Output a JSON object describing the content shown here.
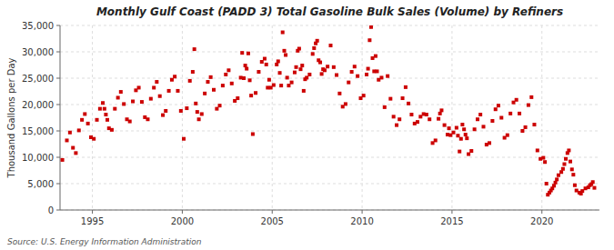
{
  "chart_data": {
    "type": "scatter",
    "title": "Monthly Gulf Coast (PADD 3) Total Gasoline Bulk Sales (Volume) by Refiners",
    "y_label": "Thousand Gallons per Day",
    "source": "Source: U.S. Energy Information Administration",
    "color": "#cc0000",
    "marker": "square",
    "grid": true,
    "xlim": [
      1993.2,
      2023.2
    ],
    "xticks": [
      1995,
      2000,
      2005,
      2010,
      2015,
      2020
    ],
    "ylim": [
      0,
      35000
    ],
    "yticks": [
      0,
      {
        "value": 5000,
        "label": "5,000"
      },
      {
        "value": 10000,
        "label": "10,000"
      },
      {
        "value": 15000,
        "label": "15,000"
      },
      {
        "value": 20000,
        "label": "20,000"
      },
      {
        "value": 25000,
        "label": "25,000"
      },
      {
        "value": 30000,
        "label": "30,000"
      },
      {
        "value": 35000,
        "label": "35,000"
      }
    ],
    "x": [
      1993.33,
      1993.58,
      1993.75,
      1993.92,
      1994.08,
      1994.25,
      1994.42,
      1994.58,
      1994.75,
      1994.92,
      1995.08,
      1995.25,
      1995.42,
      1995.58,
      1995.67,
      1995.75,
      1995.83,
      1995.92,
      1996.08,
      1996.25,
      1996.42,
      1996.58,
      1996.75,
      1996.92,
      1997.08,
      1997.25,
      1997.42,
      1997.58,
      1997.75,
      1997.92,
      1998.08,
      1998.25,
      1998.42,
      1998.58,
      1998.75,
      1998.92,
      1999.08,
      1999.25,
      1999.42,
      1999.58,
      1999.75,
      1999.92,
      2000.08,
      2000.25,
      2000.42,
      2000.58,
      2000.67,
      2000.75,
      2000.83,
      2000.92,
      2001.08,
      2001.25,
      2001.42,
      2001.58,
      2001.75,
      2001.92,
      2002.08,
      2002.25,
      2002.42,
      2002.58,
      2002.75,
      2002.92,
      2003.08,
      2003.25,
      2003.33,
      2003.42,
      2003.5,
      2003.58,
      2003.67,
      2003.75,
      2003.83,
      2003.92,
      2004.08,
      2004.25,
      2004.42,
      2004.58,
      2004.67,
      2004.75,
      2004.83,
      2004.92,
      2005.08,
      2005.25,
      2005.33,
      2005.42,
      2005.5,
      2005.58,
      2005.67,
      2005.75,
      2005.83,
      2005.92,
      2006.08,
      2006.25,
      2006.33,
      2006.42,
      2006.5,
      2006.58,
      2006.67,
      2006.75,
      2006.83,
      2006.92,
      2007.08,
      2007.25,
      2007.33,
      2007.42,
      2007.5,
      2007.58,
      2007.67,
      2007.75,
      2007.83,
      2007.92,
      2008.08,
      2008.25,
      2008.42,
      2008.58,
      2008.75,
      2008.92,
      2009.08,
      2009.25,
      2009.42,
      2009.58,
      2009.75,
      2009.92,
      2010.08,
      2010.25,
      2010.33,
      2010.42,
      2010.5,
      2010.58,
      2010.67,
      2010.75,
      2010.83,
      2010.92,
      2011.08,
      2011.25,
      2011.42,
      2011.58,
      2011.75,
      2011.92,
      2012.08,
      2012.25,
      2012.42,
      2012.58,
      2012.75,
      2012.92,
      2013.08,
      2013.25,
      2013.42,
      2013.58,
      2013.75,
      2013.92,
      2014.08,
      2014.25,
      2014.33,
      2014.42,
      2014.58,
      2014.75,
      2014.83,
      2014.92,
      2015.08,
      2015.25,
      2015.33,
      2015.42,
      2015.5,
      2015.58,
      2015.67,
      2015.75,
      2015.83,
      2015.92,
      2016.08,
      2016.25,
      2016.42,
      2016.58,
      2016.75,
      2016.92,
      2017.08,
      2017.25,
      2017.42,
      2017.58,
      2017.75,
      2017.92,
      2018.08,
      2018.25,
      2018.42,
      2018.58,
      2018.75,
      2018.92,
      2019.08,
      2019.25,
      2019.42,
      2019.58,
      2019.75,
      2019.92,
      2020.08,
      2020.17,
      2020.25,
      2020.33,
      2020.42,
      2020.5,
      2020.58,
      2020.67,
      2020.75,
      2020.83,
      2020.92,
      2021.08,
      2021.17,
      2021.25,
      2021.33,
      2021.42,
      2021.5,
      2021.58,
      2021.67,
      2021.75,
      2021.83,
      2021.92,
      2022.08,
      2022.17,
      2022.25,
      2022.42,
      2022.58,
      2022.67,
      2022.75,
      2022.83,
      2022.92
    ],
    "values": [
      9500,
      13200,
      14700,
      11800,
      10800,
      15100,
      17100,
      18200,
      16400,
      13800,
      13500,
      17100,
      19200,
      20300,
      19200,
      18100,
      17100,
      15500,
      15200,
      19200,
      21300,
      22400,
      20100,
      17200,
      16800,
      20600,
      22700,
      23200,
      20500,
      17600,
      17200,
      21100,
      23200,
      24300,
      21600,
      18000,
      18800,
      22600,
      24700,
      25300,
      22600,
      18800,
      13500,
      19300,
      24500,
      26200,
      30500,
      20200,
      18600,
      17200,
      18200,
      22100,
      24300,
      25200,
      22800,
      19200,
      19800,
      23600,
      25700,
      26500,
      24000,
      20700,
      21200,
      25100,
      29800,
      25000,
      27400,
      26800,
      29700,
      24600,
      21700,
      14400,
      22200,
      26200,
      28100,
      28700,
      27600,
      23200,
      24700,
      23200,
      23700,
      27600,
      28200,
      26000,
      23600,
      33700,
      30200,
      29400,
      25100,
      23600,
      24200,
      26100,
      27100,
      30200,
      30600,
      26700,
      27400,
      22600,
      24800,
      25100,
      25700,
      29600,
      30700,
      31600,
      32100,
      28400,
      28000,
      25800,
      26700,
      26500,
      27200,
      31200,
      27100,
      25600,
      22100,
      19600,
      20100,
      24200,
      26200,
      27200,
      25400,
      21200,
      21700,
      25700,
      26800,
      32200,
      34700,
      28800,
      26300,
      29200,
      26300,
      24700,
      25100,
      19500,
      25400,
      21100,
      17700,
      16100,
      17200,
      21200,
      23300,
      20200,
      18100,
      16400,
      16700,
      17700,
      18200,
      18100,
      17200,
      12700,
      13200,
      17300,
      18300,
      18900,
      16100,
      14300,
      15500,
      14200,
      14700,
      15600,
      14100,
      11100,
      13500,
      16200,
      15300,
      14300,
      13600,
      10600,
      11200,
      15300,
      17200,
      18100,
      15800,
      12400,
      12700,
      16900,
      19100,
      19800,
      17500,
      13700,
      14200,
      18300,
      20400,
      20900,
      18300,
      15000,
      15700,
      19900,
      21400,
      16200,
      11300,
      9700,
      9900,
      9100,
      5000,
      2900,
      3300,
      3700,
      4100,
      4600,
      5200,
      5800,
      6600,
      7200,
      7800,
      8700,
      9700,
      10800,
      11300,
      9200,
      7700,
      6700,
      4700,
      3700,
      3300,
      3100,
      3600,
      4100,
      4300,
      4700,
      4900,
      5300,
      4200
    ]
  }
}
